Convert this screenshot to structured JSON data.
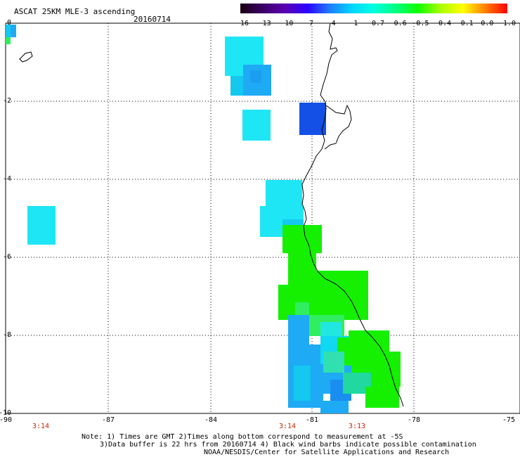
{
  "header": {
    "title": "ASCAT 25KM MLE-3 ascending",
    "date": "20160714"
  },
  "colorbar": {
    "labels": [
      "-16",
      "-13",
      "-10",
      "-7",
      "-4",
      "-1",
      "-0.7",
      "-0.6",
      "-0.5",
      "-0.4",
      "-0.1",
      "0.0",
      "1.0"
    ],
    "colors": [
      "#1a0010",
      "#3b0066",
      "#5a00b0",
      "#2a00ff",
      "#1e7bff",
      "#00d4ff",
      "#00ffe0",
      "#00ff80",
      "#10ff00",
      "#aaff00",
      "#ffff00",
      "#ff8000",
      "#ff0000"
    ]
  },
  "axes": {
    "y_ticks": [
      "0",
      "-2",
      "-4",
      "-6",
      "-8",
      "-10"
    ],
    "x_ticks": [
      "-90",
      "-87",
      "-84",
      "-81",
      "-78",
      "-75"
    ]
  },
  "times": [
    "3:14",
    "3:14",
    "3:13"
  ],
  "notes": {
    "line1": "Note: 1) Times are GMT 2)Times along bottom correspond to measurement at -5S",
    "line2": "3)Data buffer is 22 hrs from 20160714 4) Black wind barbs indicate possible contamination",
    "line3": "NOAA/NESDIS/Center for Satellite Applications and Research"
  },
  "palette": {
    "cyan_light": "#1ee6f5",
    "cyan_mid": "#14c8f0",
    "blue_mid": "#1eaaf5",
    "blue_dark": "#1450e6",
    "green": "#14f000",
    "green_light": "#30ee60",
    "teal": "#20d8a0"
  }
}
